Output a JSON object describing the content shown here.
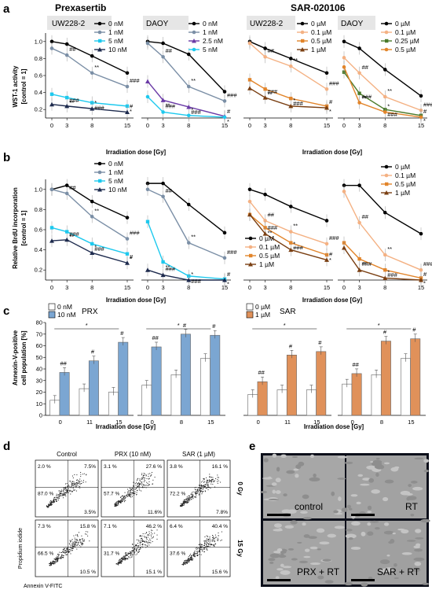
{
  "panels": {
    "a": "a",
    "b": "b",
    "c": "c",
    "d": "d",
    "e": "e"
  },
  "drugs": {
    "prx": "Prexasertib",
    "sar": "SAR-020106"
  },
  "cells": {
    "uw": "UW228-2",
    "daoy": "DAOY"
  },
  "axes": {
    "wst": "WST-1 activity",
    "brdu": "Relative BrdU incorporation",
    "ctrl": "[control = 1]",
    "anx1": "Annexin-V-positive",
    "anx2": "cell population [%]",
    "dose": "Irradiation dose [Gy]"
  },
  "colors": {
    "c0": "#000000",
    "c1": "#7b8fa6",
    "c5": "#1ec9ee",
    "c10": "#1e2b4e",
    "c25": "#6a3aa6",
    "s01": "#f4b183",
    "s025": "#4a7a2a",
    "s05": "#e2852b",
    "s1": "#7a3f12",
    "prxbar": "#7ba6d2",
    "sarbar": "#e0915a"
  },
  "legend_prx": [
    "0 nM",
    "1 nM",
    "5 nM",
    "10 nM"
  ],
  "legend_prx_daoy_a": [
    "0 nM",
    "1 nM",
    "2.5 nM",
    "5 nM"
  ],
  "legend_sar": [
    "0 µM",
    "0.1 µM",
    "0.5 µM",
    "1 µM"
  ],
  "legend_sar_daoy_a": [
    "0 µM",
    "0.1 µM",
    "0.25 µM",
    "0.5 µM"
  ],
  "legend_c_prx": [
    "0 nM",
    "10 nM",
    "PRX"
  ],
  "legend_c_sar": [
    "0 µM",
    "1 µM",
    "SAR"
  ],
  "chart_data": [
    {
      "id": "a-uw-prx",
      "type": "line",
      "x": [
        0,
        3,
        8,
        15
      ],
      "ylim": [
        0.1,
        1.1
      ],
      "yticks": [
        "1.0",
        "0.8",
        "0.6",
        "0.4",
        "0.2"
      ],
      "xticks": [
        "0",
        "3",
        "8",
        "15"
      ],
      "series": [
        {
          "name": "0 nM",
          "values": [
            1.0,
            0.97,
            0.83,
            0.63
          ]
        },
        {
          "name": "1 nM",
          "values": [
            0.92,
            0.84,
            0.63,
            0.47
          ]
        },
        {
          "name": "5 nM",
          "values": [
            0.38,
            0.34,
            0.28,
            0.24
          ]
        },
        {
          "name": "10 nM",
          "values": [
            0.26,
            0.24,
            0.21,
            0.17
          ]
        }
      ]
    },
    {
      "id": "a-daoy-prx",
      "type": "line",
      "x": [
        0,
        3,
        8,
        15
      ],
      "ylim": [
        0.1,
        1.1
      ],
      "xticks": [
        "0",
        "3",
        "8",
        "15"
      ],
      "series": [
        {
          "name": "0 nM",
          "values": [
            1.0,
            0.98,
            0.85,
            0.41
          ]
        },
        {
          "name": "1 nM",
          "values": [
            0.98,
            0.82,
            0.47,
            0.3
          ]
        },
        {
          "name": "2.5 nM",
          "values": [
            0.53,
            0.31,
            0.23,
            0.12
          ]
        },
        {
          "name": "5 nM",
          "values": [
            0.35,
            0.17,
            0.13,
            0.11
          ]
        }
      ]
    },
    {
      "id": "a-uw-sar",
      "type": "line",
      "x": [
        0,
        3,
        8,
        15
      ],
      "ylim": [
        0.1,
        1.1
      ],
      "xticks": [
        "0",
        "3",
        "8",
        "15"
      ],
      "series": [
        {
          "name": "0 µM",
          "values": [
            1.0,
            0.92,
            0.8,
            0.63
          ]
        },
        {
          "name": "0.1 µM",
          "values": [
            0.98,
            0.82,
            0.71,
            0.44
          ]
        },
        {
          "name": "0.5 µM",
          "values": [
            0.55,
            0.44,
            0.33,
            0.24
          ]
        },
        {
          "name": "1 µM",
          "values": [
            0.45,
            0.34,
            0.24,
            0.22
          ]
        }
      ]
    },
    {
      "id": "a-daoy-sar",
      "type": "line",
      "x": [
        0,
        3,
        8,
        15
      ],
      "ylim": [
        0.1,
        1.1
      ],
      "xticks": [
        "0",
        "3",
        "8",
        "15"
      ],
      "series": [
        {
          "name": "0 µM",
          "values": [
            1.0,
            0.92,
            0.67,
            0.36
          ]
        },
        {
          "name": "0.1 µM",
          "values": [
            0.81,
            0.63,
            0.35,
            0.19
          ]
        },
        {
          "name": "0.25 µM",
          "values": [
            0.64,
            0.39,
            0.2,
            0.13
          ]
        },
        {
          "name": "0.5 µM",
          "values": [
            0.7,
            0.28,
            0.17,
            0.11
          ]
        }
      ]
    },
    {
      "id": "b-uw-prx",
      "type": "line",
      "x": [
        0,
        3,
        8,
        15
      ],
      "ylim": [
        0.1,
        1.1
      ],
      "yticks": [
        "1.0",
        "0.8",
        "0.6",
        "0.4",
        "0.2"
      ],
      "xticks": [
        "0",
        "3",
        "8",
        "15"
      ],
      "series": [
        {
          "name": "0 nM",
          "values": [
            1.0,
            1.04,
            0.88,
            0.72
          ]
        },
        {
          "name": "1 nM",
          "values": [
            1.0,
            0.96,
            0.73,
            0.51
          ]
        },
        {
          "name": "5 nM",
          "values": [
            0.62,
            0.58,
            0.46,
            0.36
          ]
        },
        {
          "name": "10 nM",
          "values": [
            0.49,
            0.5,
            0.37,
            0.27
          ]
        }
      ]
    },
    {
      "id": "b-daoy-prx",
      "type": "line",
      "x": [
        0,
        3,
        8,
        15
      ],
      "ylim": [
        0.1,
        1.1
      ],
      "xticks": [
        "0",
        "3",
        "8",
        "15"
      ],
      "series": [
        {
          "name": "0 nM",
          "values": [
            1.06,
            1.06,
            0.85,
            0.57
          ]
        },
        {
          "name": "1 nM",
          "values": [
            1.0,
            0.93,
            0.47,
            0.32
          ]
        },
        {
          "name": "5 nM",
          "values": [
            0.68,
            0.28,
            0.14,
            0.11
          ]
        },
        {
          "name": "10 nM",
          "values": [
            0.2,
            0.15,
            0.1,
            0.1
          ]
        }
      ]
    },
    {
      "id": "b-uw-sar",
      "type": "line",
      "x": [
        0,
        3,
        8,
        15
      ],
      "ylim": [
        0.1,
        1.1
      ],
      "xticks": [
        "0",
        "3",
        "8",
        "15"
      ],
      "series": [
        {
          "name": "0 µM",
          "values": [
            1.0,
            0.95,
            0.83,
            0.69
          ]
        },
        {
          "name": "0.1 µM",
          "values": [
            0.88,
            0.69,
            0.58,
            0.46
          ]
        },
        {
          "name": "0.5 µM",
          "values": [
            0.75,
            0.62,
            0.47,
            0.35
          ]
        },
        {
          "name": "1 µM",
          "values": [
            0.75,
            0.56,
            0.4,
            0.3
          ]
        }
      ]
    },
    {
      "id": "b-daoy-sar",
      "type": "line",
      "x": [
        0,
        3,
        8,
        15
      ],
      "ylim": [
        0.1,
        1.1
      ],
      "xticks": [
        "0",
        "3",
        "8",
        "15"
      ],
      "series": [
        {
          "name": "0 µM",
          "values": [
            1.04,
            1.04,
            0.77,
            0.56
          ]
        },
        {
          "name": "0.1 µM",
          "values": [
            0.98,
            0.67,
            0.35,
            0.2
          ]
        },
        {
          "name": "0.5 µM",
          "values": [
            0.47,
            0.31,
            0.2,
            0.12
          ]
        },
        {
          "name": "1 µM",
          "values": [
            0.42,
            0.2,
            0.12,
            0.1
          ]
        }
      ]
    },
    {
      "id": "c-uw-prx",
      "type": "bar",
      "categories": [
        "0",
        "11",
        "15"
      ],
      "ylim": [
        0,
        80
      ],
      "yticks": [
        "80",
        "70",
        "60",
        "50",
        "40",
        "30",
        "20",
        "10",
        "0"
      ],
      "series": [
        {
          "name": "0 nM",
          "values": [
            13,
            23,
            20
          ]
        },
        {
          "name": "10 nM",
          "values": [
            37,
            47,
            63
          ]
        }
      ]
    },
    {
      "id": "c-daoy-prx",
      "type": "bar",
      "categories": [
        "0",
        "8",
        "15"
      ],
      "ylim": [
        0,
        80
      ],
      "series": [
        {
          "name": "0 nM",
          "values": [
            26,
            35,
            49
          ]
        },
        {
          "name": "10 nM",
          "values": [
            59,
            70,
            69
          ]
        }
      ]
    },
    {
      "id": "c-uw-sar",
      "type": "bar",
      "categories": [
        "0",
        "11",
        "15"
      ],
      "ylim": [
        0,
        80
      ],
      "series": [
        {
          "name": "0 µM",
          "values": [
            18,
            22,
            22
          ]
        },
        {
          "name": "1 µM",
          "values": [
            29,
            52,
            55
          ]
        }
      ]
    },
    {
      "id": "c-daoy-sar",
      "type": "bar",
      "categories": [
        "0",
        "8",
        "15"
      ],
      "ylim": [
        0,
        80
      ],
      "series": [
        {
          "name": "0 µM",
          "values": [
            27,
            35,
            49
          ]
        },
        {
          "name": "1 µM",
          "values": [
            36,
            64,
            66
          ]
        }
      ]
    },
    {
      "id": "d-flow",
      "type": "scatter",
      "columns": [
        "Control",
        "PRX (10 nM)",
        "SAR (1 µM)"
      ],
      "rows": [
        "0 Gy",
        "15 Gy"
      ],
      "xlabel": "Annexin V-FITC",
      "ylabel": "Propidium iodide",
      "quadrants": [
        [
          [
            "2.0 %",
            "7.5%",
            "87.0 %",
            "3.5%"
          ],
          [
            "3.1 %",
            "27.6 %",
            "57.7 %",
            "11.6%"
          ],
          [
            "3.8 %",
            "16.1 %",
            "72.2 %",
            "7.8%"
          ]
        ],
        [
          [
            "7.3 %",
            "15.8 %",
            "66.5 %",
            "10.5 %"
          ],
          [
            "7.1 %",
            "46.2 %",
            "31.7 %",
            "15.1 %"
          ],
          [
            "6.4 %",
            "40.4 %",
            "37.6 %",
            "15.6 %"
          ]
        ]
      ]
    }
  ],
  "microscopy": [
    "control",
    "RT",
    "PRX + RT",
    "SAR + RT"
  ]
}
